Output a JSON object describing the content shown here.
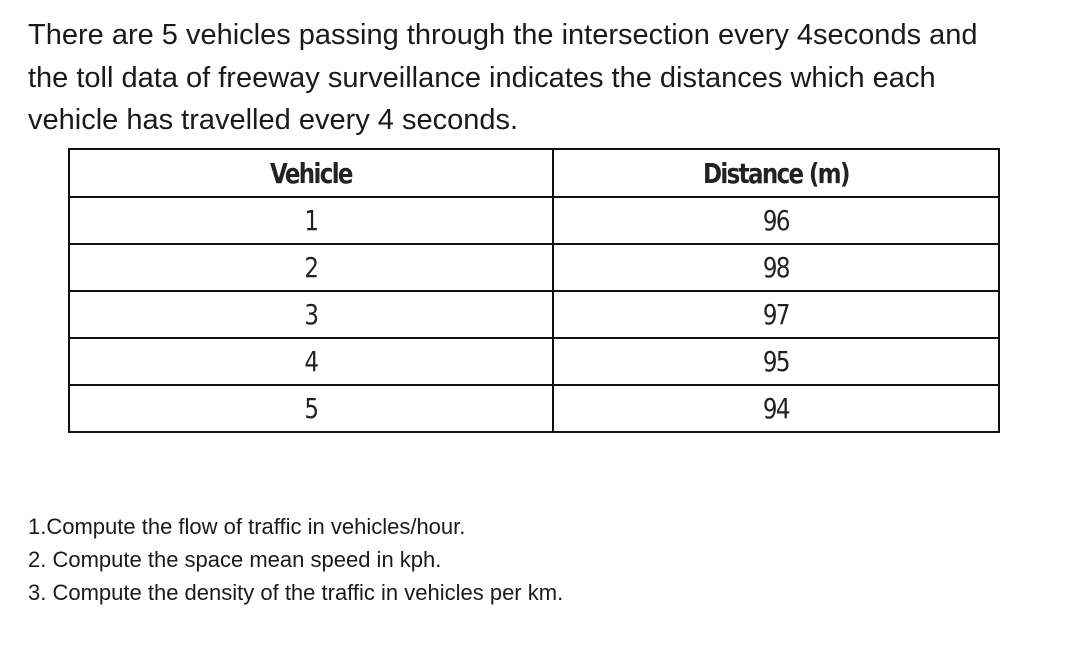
{
  "intro": [
    "There are 5 vehicles passing through the intersection every 4seconds and",
    "the toll data of freeway surveillance indicates the distances which each",
    "vehicle has travelled every 4 seconds."
  ],
  "table": {
    "header": [
      "Vehicle",
      "Distance (m)"
    ],
    "rows": [
      [
        1,
        96
      ],
      [
        2,
        98
      ],
      [
        3,
        97
      ],
      [
        4,
        95
      ],
      [
        5,
        94
      ]
    ]
  },
  "questions": [
    "1.Compute the flow of traffic in vehicles/hour.",
    "2. Compute the space mean speed in kph.",
    "3. Compute the density of the traffic in vehicles per km."
  ]
}
